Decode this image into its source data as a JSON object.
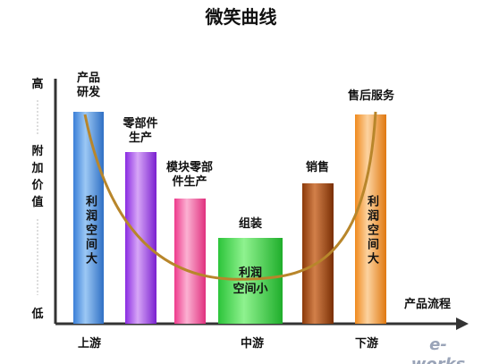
{
  "title": "微笑曲线",
  "y_axis": {
    "high": "高",
    "label": "附加价值",
    "low": "低"
  },
  "x_axis_label": "产品流程",
  "bars": [
    {
      "label": "产品研发",
      "inner": [
        "利润空间大"
      ]
    },
    {
      "label": "零部件生产",
      "inner": []
    },
    {
      "label": "模块零部件生产",
      "inner": []
    },
    {
      "label": "组装",
      "inner": [
        "利润",
        "空间小"
      ]
    },
    {
      "label": "销售",
      "inner": []
    },
    {
      "label": "售后服务",
      "inner": [
        "利润空间大"
      ]
    }
  ],
  "stages": [
    "上游",
    "中游",
    "下游"
  ],
  "watermark": "e-works"
}
